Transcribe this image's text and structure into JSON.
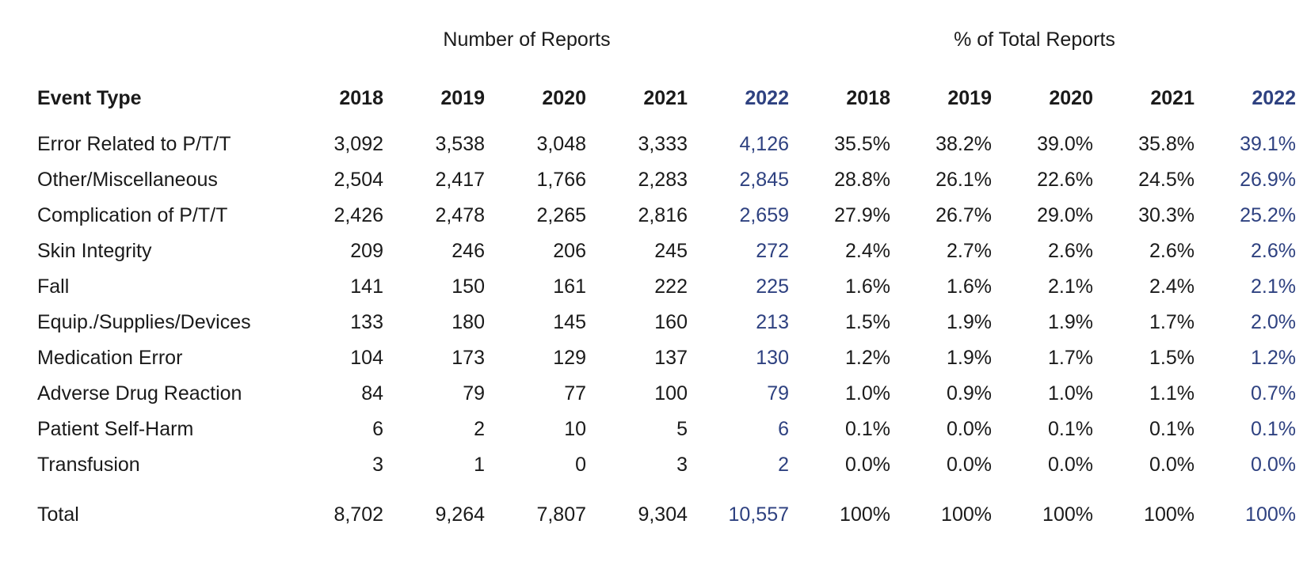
{
  "group_headers": {
    "number_of_reports": "Number of Reports",
    "percent_of_total": "% of Total Reports"
  },
  "column_header": {
    "event_type": "Event Type",
    "years": [
      "2018",
      "2019",
      "2020",
      "2021",
      "2022"
    ]
  },
  "highlight_color": "#2e4180",
  "rows": [
    {
      "event_type": "Error Related to P/T/T",
      "counts": [
        "3,092",
        "3,538",
        "3,048",
        "3,333",
        "4,126"
      ],
      "percents": [
        "35.5%",
        "38.2%",
        "39.0%",
        "35.8%",
        "39.1%"
      ]
    },
    {
      "event_type": "Other/Miscellaneous",
      "counts": [
        "2,504",
        "2,417",
        "1,766",
        "2,283",
        "2,845"
      ],
      "percents": [
        "28.8%",
        "26.1%",
        "22.6%",
        "24.5%",
        "26.9%"
      ]
    },
    {
      "event_type": "Complication of P/T/T",
      "counts": [
        "2,426",
        "2,478",
        "2,265",
        "2,816",
        "2,659"
      ],
      "percents": [
        "27.9%",
        "26.7%",
        "29.0%",
        "30.3%",
        "25.2%"
      ]
    },
    {
      "event_type": "Skin Integrity",
      "counts": [
        "209",
        "246",
        "206",
        "245",
        "272"
      ],
      "percents": [
        "2.4%",
        "2.7%",
        "2.6%",
        "2.6%",
        "2.6%"
      ]
    },
    {
      "event_type": "Fall",
      "counts": [
        "141",
        "150",
        "161",
        "222",
        "225"
      ],
      "percents": [
        "1.6%",
        "1.6%",
        "2.1%",
        "2.4%",
        "2.1%"
      ]
    },
    {
      "event_type": "Equip./Supplies/Devices",
      "counts": [
        "133",
        "180",
        "145",
        "160",
        "213"
      ],
      "percents": [
        "1.5%",
        "1.9%",
        "1.9%",
        "1.7%",
        "2.0%"
      ]
    },
    {
      "event_type": "Medication Error",
      "counts": [
        "104",
        "173",
        "129",
        "137",
        "130"
      ],
      "percents": [
        "1.2%",
        "1.9%",
        "1.7%",
        "1.5%",
        "1.2%"
      ]
    },
    {
      "event_type": "Adverse Drug Reaction",
      "counts": [
        "84",
        "79",
        "77",
        "100",
        "79"
      ],
      "percents": [
        "1.0%",
        "0.9%",
        "1.0%",
        "1.1%",
        "0.7%"
      ]
    },
    {
      "event_type": "Patient Self-Harm",
      "counts": [
        "6",
        "2",
        "10",
        "5",
        "6"
      ],
      "percents": [
        "0.1%",
        "0.0%",
        "0.1%",
        "0.1%",
        "0.1%"
      ]
    },
    {
      "event_type": "Transfusion",
      "counts": [
        "3",
        "1",
        "0",
        "3",
        "2"
      ],
      "percents": [
        "0.0%",
        "0.0%",
        "0.0%",
        "0.0%",
        "0.0%"
      ]
    }
  ],
  "total": {
    "label": "Total",
    "counts": [
      "8,702",
      "9,264",
      "7,807",
      "9,304",
      "10,557"
    ],
    "percents": [
      "100%",
      "100%",
      "100%",
      "100%",
      "100%"
    ]
  }
}
